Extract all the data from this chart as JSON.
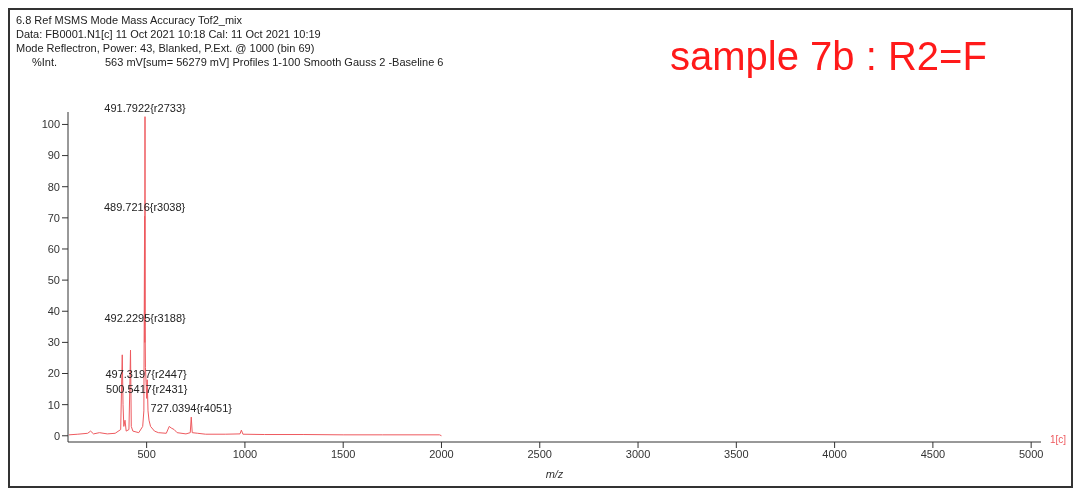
{
  "chart_data": {
    "type": "line",
    "title": "6.8 Ref MSMS Mode Mass Accuracy Tof2_mix",
    "subtitle": "Data: FB0001.N1[c] 11 Oct 2021 10:18 Cal: 11 Oct 2021 10:19",
    "ylabel": "%Int.",
    "xlabel": "m/z",
    "annotations": [
      "Mode Reflectron, Power: 43, Blanked, P.Ext. @ 1000 (bin 69)",
      "563 mV[sum= 56279 mV]  Profiles 1-100 Smooth Gauss 2 -Baseline 6",
      "sample 7b : R2=F",
      "1[c]",
      {
        "text": "491.7922{r2733}",
        "x": 491.7922,
        "y": 102.5
      },
      {
        "text": "489.7216{r3038}",
        "x": 489.7216,
        "y": 70.5
      },
      {
        "text": "492.2295{r3188}",
        "x": 492.2295,
        "y": 35
      },
      {
        "text": "497.3197{r2447}",
        "x": 497.3197,
        "y": 17
      },
      {
        "text": "500.5417{r2431}",
        "x": 500.5417,
        "y": 12
      },
      {
        "text": "727.0394{r4051}",
        "x": 727.0394,
        "y": 6
      }
    ],
    "x": [
      105,
      150,
      200,
      215,
      230,
      260,
      300,
      340,
      368,
      372,
      376,
      380,
      384,
      390,
      396,
      410,
      414,
      418,
      422,
      430,
      460,
      480,
      486,
      489.7216,
      490.8,
      491.7922,
      492.2295,
      494,
      497.3197,
      500.5417,
      503,
      507,
      512,
      520,
      540,
      560,
      600,
      615,
      625,
      640,
      655,
      700,
      722,
      727.0394,
      732,
      760,
      800,
      900,
      975,
      982,
      990,
      1100,
      1300,
      1500,
      1700,
      1990,
      2000
    ],
    "values": [
      0.3,
      0.5,
      0.8,
      1.5,
      0.6,
      1,
      0.6,
      0.8,
      2,
      14,
      26,
      10,
      3,
      5,
      1.5,
      2,
      14,
      27.5,
      3,
      1.5,
      1,
      3,
      8,
      70.5,
      30,
      102.5,
      35,
      22,
      17,
      12,
      18,
      8,
      5,
      3,
      1.5,
      1,
      0.8,
      3,
      2.5,
      2,
      1,
      0.6,
      1,
      6,
      1,
      0.8,
      0.5,
      0.5,
      0.6,
      1.8,
      0.5,
      0.4,
      0.4,
      0.3,
      0.3,
      0.3,
      0
    ],
    "color": "#ee5a5f",
    "xlim": [
      100,
      5050
    ],
    "xticks": [
      500,
      1000,
      1500,
      2000,
      2500,
      3000,
      3500,
      4000,
      4500,
      5000
    ],
    "ylim": [
      -2,
      104
    ],
    "yticks": [
      0,
      10,
      20,
      30,
      40,
      50,
      60,
      70,
      80,
      90,
      100
    ]
  }
}
